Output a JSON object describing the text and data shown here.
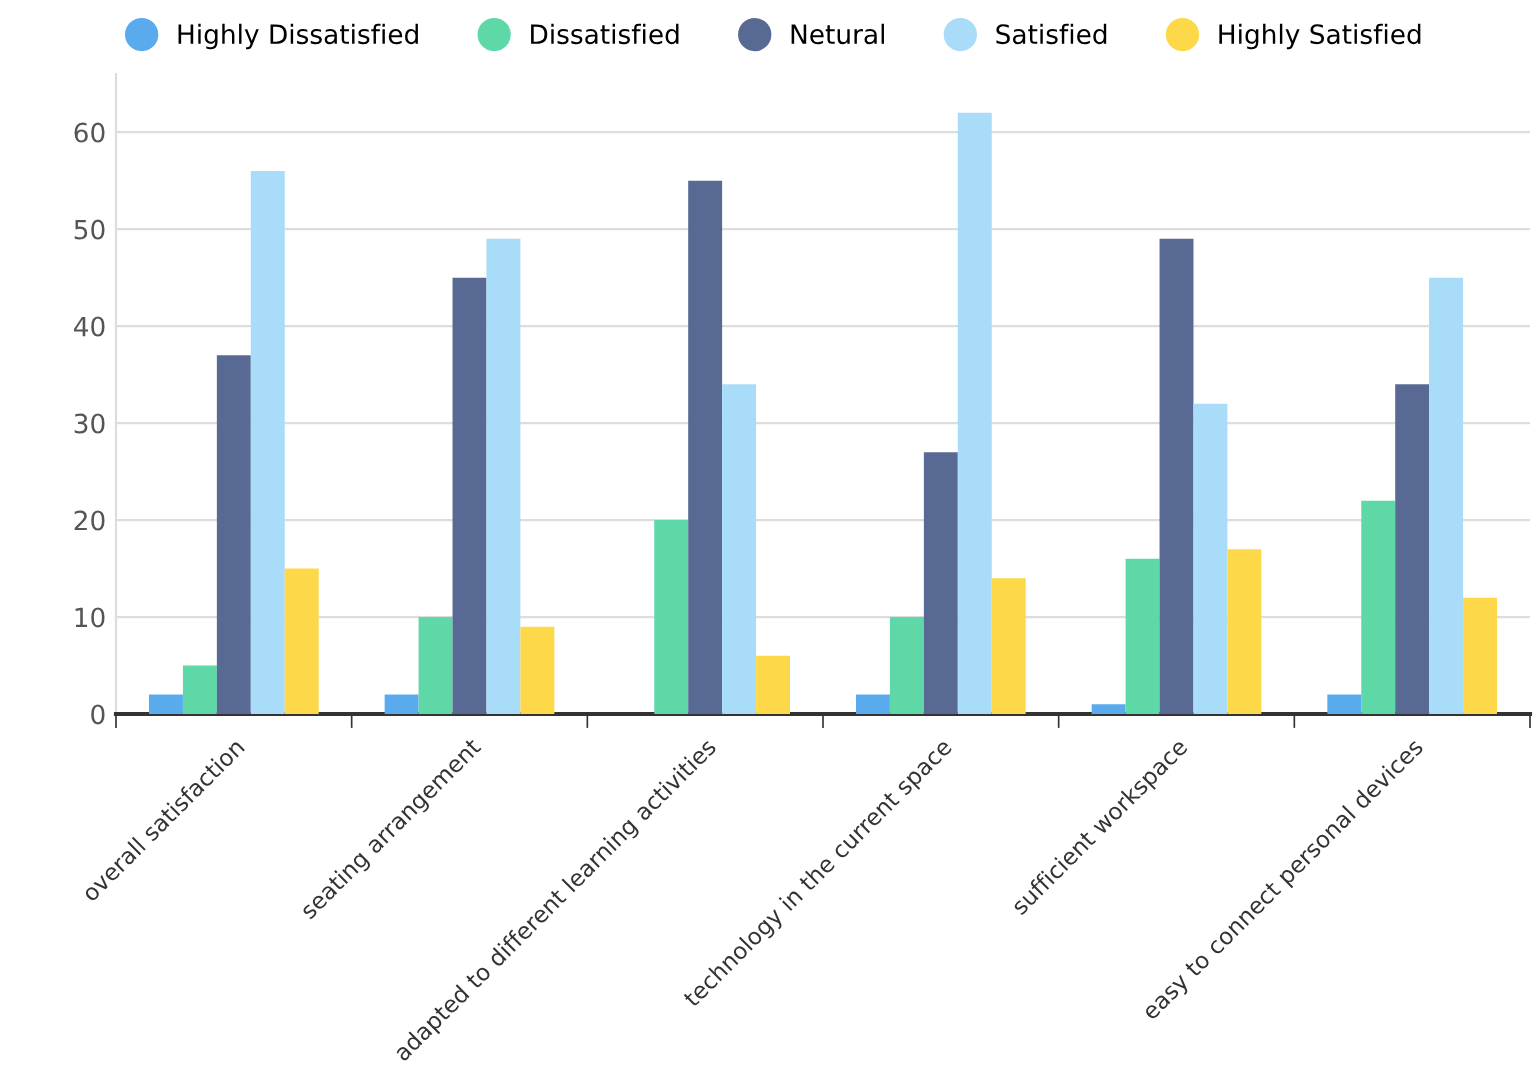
{
  "chart_data": {
    "type": "bar",
    "categories": [
      "overall satisfaction",
      "seating arrangement",
      "adapted to different learning activities",
      "technology in the current space",
      "sufficient workspace",
      "easy to connect personal devices"
    ],
    "series": [
      {
        "name": "Highly Dissatisfied",
        "color": "#5aabee",
        "values": [
          2,
          2,
          0,
          2,
          1,
          2
        ]
      },
      {
        "name": "Dissatisfied",
        "color": "#5fd8a8",
        "values": [
          5,
          10,
          20,
          10,
          16,
          22
        ]
      },
      {
        "name": "Netural",
        "color": "#586a94",
        "values": [
          37,
          45,
          55,
          27,
          49,
          34
        ]
      },
      {
        "name": "Satisfied",
        "color": "#a8dcf8",
        "values": [
          56,
          49,
          34,
          62,
          32,
          45
        ]
      },
      {
        "name": "Highly Satisfied",
        "color": "#fdd94a",
        "values": [
          15,
          9,
          6,
          14,
          17,
          12
        ]
      }
    ],
    "ylim": [
      0,
      66
    ],
    "yticks": [
      0,
      10,
      20,
      30,
      40,
      50,
      60
    ],
    "grid": "y",
    "legend": "top"
  }
}
